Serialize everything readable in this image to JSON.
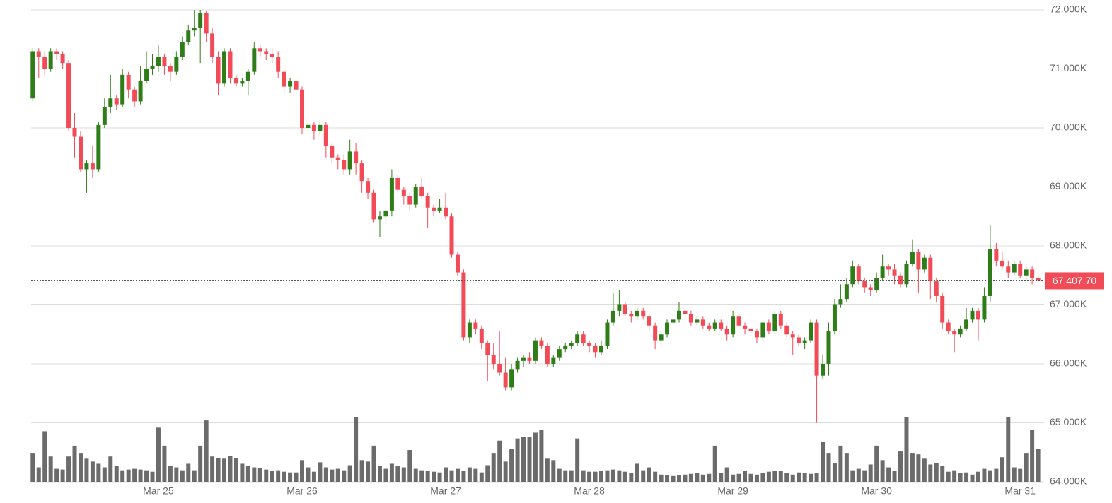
{
  "chart_data": {
    "type": "candlestick",
    "up_color": "#2f7d18",
    "down_color": "#f04b57",
    "volume_color": "#6b6b6b",
    "grid": true,
    "ylim": [
      64000,
      72000
    ],
    "yticks": [
      {
        "value": 64000,
        "label": "64.000K"
      },
      {
        "value": 65000,
        "label": "65.000K"
      },
      {
        "value": 66000,
        "label": "66.000K"
      },
      {
        "value": 67000,
        "label": "67.000K"
      },
      {
        "value": 68000,
        "label": "68.000K"
      },
      {
        "value": 69000,
        "label": "69.000K"
      },
      {
        "value": 70000,
        "label": "70.000K"
      },
      {
        "value": 71000,
        "label": "71.000K"
      },
      {
        "value": 72000,
        "label": "72.000K"
      }
    ],
    "last_price": {
      "value": 67407.7,
      "label": "67,407.70"
    },
    "categories": [
      null,
      null,
      null,
      null,
      null,
      null,
      null,
      null,
      null,
      null,
      null,
      null,
      null,
      null,
      null,
      null,
      null,
      null,
      null,
      null,
      null,
      "Mar 25",
      null,
      null,
      null,
      null,
      null,
      null,
      null,
      null,
      null,
      null,
      null,
      null,
      null,
      null,
      null,
      null,
      null,
      null,
      null,
      null,
      null,
      null,
      null,
      "Mar 26",
      null,
      null,
      null,
      null,
      null,
      null,
      null,
      null,
      null,
      null,
      null,
      null,
      null,
      null,
      null,
      null,
      null,
      null,
      null,
      null,
      null,
      null,
      null,
      "Mar 27",
      null,
      null,
      null,
      null,
      null,
      null,
      null,
      null,
      null,
      null,
      null,
      null,
      null,
      null,
      null,
      null,
      null,
      null,
      null,
      null,
      null,
      null,
      null,
      "Mar 28",
      null,
      null,
      null,
      null,
      null,
      null,
      null,
      null,
      null,
      null,
      null,
      null,
      null,
      null,
      null,
      null,
      null,
      null,
      null,
      null,
      null,
      null,
      null,
      "Mar 29",
      null,
      null,
      null,
      null,
      null,
      null,
      null,
      null,
      null,
      null,
      null,
      null,
      null,
      null,
      null,
      null,
      null,
      null,
      null,
      null,
      null,
      null,
      null,
      "Mar 30",
      null,
      null,
      null,
      null,
      null,
      null,
      null,
      null,
      null,
      null,
      null,
      null,
      null,
      null,
      null,
      null,
      null,
      null,
      null,
      null,
      null,
      null,
      null,
      "Mar 31",
      null,
      null,
      null
    ],
    "candles": [
      [
        70500,
        71350,
        70450,
        71300
      ],
      [
        71300,
        71350,
        70850,
        71200
      ],
      [
        71200,
        71300,
        70900,
        71000
      ],
      [
        71000,
        71350,
        70950,
        71300
      ],
      [
        71300,
        71350,
        71150,
        71250
      ],
      [
        71250,
        71300,
        71000,
        71100
      ],
      [
        71100,
        71150,
        69950,
        70000
      ],
      [
        70000,
        70250,
        69500,
        69850
      ],
      [
        69850,
        69950,
        69250,
        69300
      ],
      [
        69300,
        69450,
        68900,
        69400
      ],
      [
        69400,
        69700,
        69150,
        69300
      ],
      [
        69300,
        70100,
        69250,
        70050
      ],
      [
        70050,
        70500,
        70000,
        70350
      ],
      [
        70350,
        70900,
        70250,
        70500
      ],
      [
        70500,
        70550,
        70300,
        70400
      ],
      [
        70400,
        71000,
        70350,
        70900
      ],
      [
        70900,
        70950,
        70500,
        70650
      ],
      [
        70650,
        70700,
        70350,
        70450
      ],
      [
        70450,
        71050,
        70400,
        70800
      ],
      [
        70800,
        71300,
        70750,
        71000
      ],
      [
        71000,
        71250,
        70900,
        71050
      ],
      [
        71050,
        71400,
        70950,
        71200
      ],
      [
        71200,
        71250,
        70900,
        71050
      ],
      [
        71050,
        71100,
        70800,
        70950
      ],
      [
        70950,
        71300,
        70900,
        71200
      ],
      [
        71200,
        71550,
        71150,
        71450
      ],
      [
        71450,
        71750,
        71400,
        71650
      ],
      [
        71650,
        72000,
        71550,
        71700
      ],
      [
        71700,
        72000,
        71100,
        71950
      ],
      [
        71950,
        71980,
        71450,
        71600
      ],
      [
        71600,
        71700,
        71100,
        71200
      ],
      [
        71200,
        71300,
        70550,
        70750
      ],
      [
        70750,
        71350,
        70700,
        71300
      ],
      [
        71300,
        71350,
        70750,
        70850
      ],
      [
        70850,
        70900,
        70700,
        70750
      ],
      [
        70750,
        70850,
        70700,
        70800
      ],
      [
        70800,
        71000,
        70550,
        70950
      ],
      [
        70950,
        71450,
        70900,
        71350
      ],
      [
        71350,
        71400,
        71200,
        71300
      ],
      [
        71300,
        71350,
        71150,
        71250
      ],
      [
        71250,
        71350,
        71100,
        71200
      ],
      [
        71200,
        71300,
        70850,
        70950
      ],
      [
        70950,
        71000,
        70600,
        70700
      ],
      [
        70700,
        70850,
        70600,
        70800
      ],
      [
        70800,
        70850,
        70550,
        70650
      ],
      [
        70650,
        70700,
        69900,
        70000
      ],
      [
        70000,
        70100,
        69950,
        70050
      ],
      [
        70050,
        70100,
        69800,
        69950
      ],
      [
        69950,
        70100,
        69850,
        70050
      ],
      [
        70050,
        70100,
        69500,
        69700
      ],
      [
        69700,
        69750,
        69400,
        69500
      ],
      [
        69500,
        69550,
        69300,
        69450
      ],
      [
        69450,
        69550,
        69200,
        69300
      ],
      [
        69300,
        69800,
        69200,
        69600
      ],
      [
        69600,
        69750,
        69200,
        69400
      ],
      [
        69400,
        69450,
        68900,
        69100
      ],
      [
        69100,
        69150,
        68800,
        68900
      ],
      [
        68900,
        68950,
        68400,
        68450
      ],
      [
        68450,
        68600,
        68150,
        68500
      ],
      [
        68500,
        68650,
        68400,
        68600
      ],
      [
        68600,
        69300,
        68500,
        69150
      ],
      [
        69150,
        69200,
        68900,
        68950
      ],
      [
        68950,
        69000,
        68700,
        68850
      ],
      [
        68850,
        68900,
        68600,
        68700
      ],
      [
        68700,
        69050,
        68650,
        69000
      ],
      [
        69000,
        69150,
        68800,
        68850
      ],
      [
        68850,
        68900,
        68300,
        68650
      ],
      [
        68650,
        68700,
        68500,
        68600
      ],
      [
        68600,
        68800,
        68550,
        68650
      ],
      [
        68650,
        68900,
        68450,
        68500
      ],
      [
        68500,
        68550,
        67800,
        67850
      ],
      [
        67850,
        67900,
        67500,
        67550
      ],
      [
        67550,
        67600,
        66400,
        66450
      ],
      [
        66450,
        66750,
        66350,
        66700
      ],
      [
        66700,
        66750,
        66500,
        66600
      ],
      [
        66600,
        66650,
        66250,
        66350
      ],
      [
        66350,
        66400,
        65700,
        66150
      ],
      [
        66150,
        66350,
        65900,
        66000
      ],
      [
        66000,
        66550,
        65800,
        65850
      ],
      [
        65850,
        66100,
        65550,
        65600
      ],
      [
        65600,
        66000,
        65550,
        65900
      ],
      [
        65900,
        66100,
        65850,
        66050
      ],
      [
        66050,
        66150,
        65950,
        66100
      ],
      [
        66100,
        66200,
        66000,
        66050
      ],
      [
        66050,
        66450,
        66000,
        66400
      ],
      [
        66400,
        66450,
        66250,
        66300
      ],
      [
        66300,
        66350,
        65950,
        66000
      ],
      [
        66000,
        66150,
        65950,
        66100
      ],
      [
        66100,
        66300,
        66050,
        66250
      ],
      [
        66250,
        66350,
        66200,
        66300
      ],
      [
        66300,
        66400,
        66250,
        66350
      ],
      [
        66350,
        66550,
        66300,
        66500
      ],
      [
        66500,
        66550,
        66300,
        66350
      ],
      [
        66350,
        66400,
        66200,
        66300
      ],
      [
        66300,
        66350,
        66100,
        66200
      ],
      [
        66200,
        66400,
        66150,
        66300
      ],
      [
        66300,
        66750,
        66250,
        66700
      ],
      [
        66700,
        67200,
        66650,
        66900
      ],
      [
        66900,
        67250,
        66800,
        67000
      ],
      [
        67000,
        67050,
        66800,
        66850
      ],
      [
        66850,
        66900,
        66700,
        66800
      ],
      [
        66800,
        66950,
        66750,
        66900
      ],
      [
        66900,
        66950,
        66750,
        66800
      ],
      [
        66800,
        66850,
        66550,
        66650
      ],
      [
        66650,
        66700,
        66250,
        66400
      ],
      [
        66400,
        66550,
        66300,
        66500
      ],
      [
        66500,
        66750,
        66450,
        66700
      ],
      [
        66700,
        66800,
        66650,
        66750
      ],
      [
        66750,
        67050,
        66700,
        66900
      ],
      [
        66900,
        66950,
        66650,
        66850
      ],
      [
        66850,
        66900,
        66650,
        66700
      ],
      [
        66700,
        66800,
        66650,
        66750
      ],
      [
        66750,
        66800,
        66600,
        66650
      ],
      [
        66650,
        66700,
        66550,
        66600
      ],
      [
        66600,
        66750,
        66550,
        66700
      ],
      [
        66700,
        66750,
        66550,
        66600
      ],
      [
        66600,
        66650,
        66400,
        66500
      ],
      [
        66500,
        66900,
        66450,
        66800
      ],
      [
        66800,
        66850,
        66600,
        66650
      ],
      [
        66650,
        66700,
        66500,
        66600
      ],
      [
        66600,
        66650,
        66500,
        66550
      ],
      [
        66550,
        66600,
        66350,
        66450
      ],
      [
        66450,
        66750,
        66400,
        66700
      ],
      [
        66700,
        66750,
        66500,
        66550
      ],
      [
        66550,
        66900,
        66500,
        66850
      ],
      [
        66850,
        66900,
        66600,
        66650
      ],
      [
        66650,
        66700,
        66450,
        66500
      ],
      [
        66500,
        66550,
        66150,
        66450
      ],
      [
        66450,
        66500,
        66300,
        66350
      ],
      [
        66350,
        66450,
        66250,
        66400
      ],
      [
        66400,
        66750,
        66350,
        66700
      ],
      [
        66700,
        66750,
        65000,
        65800
      ],
      [
        65800,
        66150,
        65750,
        66000
      ],
      [
        66000,
        66700,
        65800,
        66550
      ],
      [
        66550,
        67100,
        66500,
        67000
      ],
      [
        67000,
        67350,
        66950,
        67100
      ],
      [
        67100,
        67450,
        67050,
        67350
      ],
      [
        67350,
        67750,
        67300,
        67650
      ],
      [
        67650,
        67700,
        67350,
        67400
      ],
      [
        67400,
        67450,
        67200,
        67300
      ],
      [
        67300,
        67350,
        67150,
        67250
      ],
      [
        67250,
        67550,
        67200,
        67450
      ],
      [
        67450,
        67850,
        67400,
        67650
      ],
      [
        67650,
        67700,
        67500,
        67600
      ],
      [
        67600,
        67700,
        67350,
        67500
      ],
      [
        67500,
        67550,
        67300,
        67350
      ],
      [
        67350,
        67750,
        67300,
        67700
      ],
      [
        67700,
        68100,
        67650,
        67900
      ],
      [
        67900,
        67950,
        67200,
        67600
      ],
      [
        67600,
        67850,
        67550,
        67800
      ],
      [
        67800,
        67850,
        67100,
        67400
      ],
      [
        67400,
        67450,
        67050,
        67150
      ],
      [
        67150,
        67200,
        66600,
        66700
      ],
      [
        66700,
        66750,
        66500,
        66550
      ],
      [
        66550,
        66600,
        66200,
        66500
      ],
      [
        66500,
        66650,
        66450,
        66600
      ],
      [
        66600,
        66950,
        66550,
        66750
      ],
      [
        66750,
        66950,
        66700,
        66900
      ],
      [
        66900,
        66950,
        66400,
        66750
      ],
      [
        66750,
        67300,
        66700,
        67150
      ],
      [
        67150,
        68350,
        67050,
        67950
      ],
      [
        67950,
        68050,
        67650,
        67750
      ],
      [
        67750,
        67900,
        67600,
        67650
      ],
      [
        67650,
        67750,
        67450,
        67550
      ],
      [
        67550,
        67750,
        67500,
        67700
      ],
      [
        67700,
        67750,
        67450,
        67500
      ],
      [
        67500,
        67650,
        67400,
        67600
      ],
      [
        67600,
        67650,
        67350,
        67450
      ],
      [
        67450,
        67550,
        67350,
        67407.7
      ]
    ],
    "volume": [
      40,
      20,
      70,
      35,
      18,
      17,
      35,
      50,
      40,
      32,
      28,
      25,
      20,
      35,
      22,
      16,
      17,
      18,
      17,
      16,
      14,
      75,
      50,
      22,
      20,
      16,
      25,
      16,
      50,
      85,
      35,
      33,
      32,
      36,
      33,
      25,
      22,
      20,
      19,
      17,
      15,
      16,
      14,
      13,
      13,
      30,
      20,
      14,
      27,
      20,
      17,
      18,
      16,
      23,
      90,
      30,
      28,
      50,
      22,
      18,
      25,
      22,
      20,
      44,
      18,
      16,
      15,
      14,
      13,
      20,
      16,
      18,
      15,
      20,
      18,
      13,
      23,
      40,
      57,
      28,
      45,
      60,
      62,
      62,
      68,
      72,
      32,
      30,
      18,
      16,
      16,
      60,
      16,
      14,
      14,
      15,
      16,
      17,
      16,
      14,
      12,
      25,
      16,
      20,
      14,
      10,
      9,
      8,
      9,
      10,
      11,
      12,
      10,
      11,
      50,
      12,
      20,
      10,
      11,
      15,
      11,
      10,
      12,
      14,
      15,
      15,
      12,
      10,
      13,
      12,
      11,
      12,
      55,
      40,
      26,
      50,
      40,
      16,
      18,
      16,
      24,
      50,
      30,
      20,
      15,
      42,
      90,
      40,
      38,
      32,
      24,
      26,
      22,
      14,
      16,
      12,
      13,
      10,
      14,
      18,
      16,
      18,
      34,
      90,
      20,
      18,
      40,
      72,
      45
    ]
  }
}
